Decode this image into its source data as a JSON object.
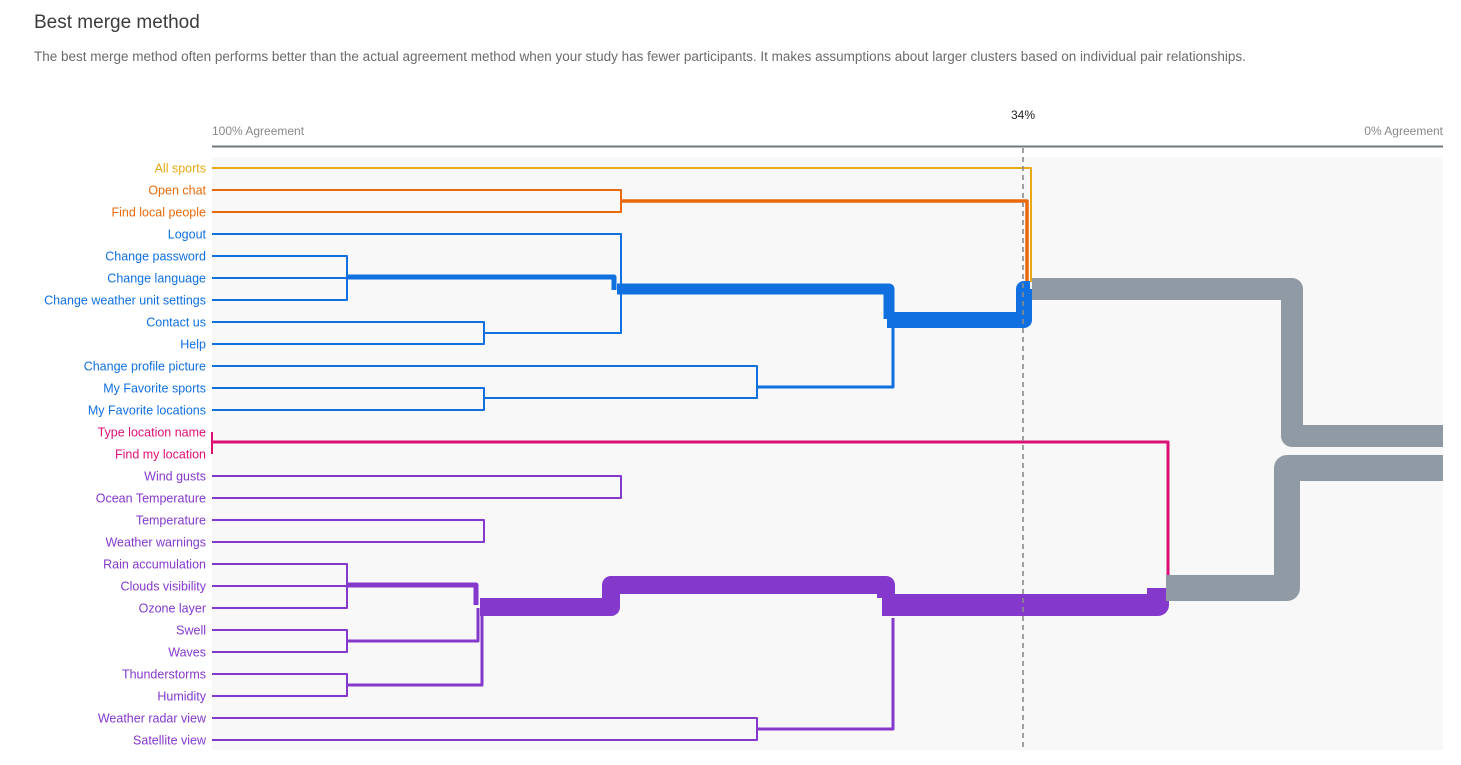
{
  "header": {
    "title": "Best merge method",
    "description": "The best merge method often performs better than the actual agreement method when your study has fewer participants. It makes assumptions about larger clusters based on individual pair relationships."
  },
  "axis": {
    "left_label": "100% Agreement",
    "right_label": "0% Agreement",
    "marker_label": "34%",
    "marker_value": 34
  },
  "colors": {
    "yellow": "#e8a915",
    "orange": "#ea6a0a",
    "blue": "#1170e0",
    "pink": "#dd0f75",
    "purple": "#8438cc",
    "gray": "#8f9aa5",
    "axis_line": "#6f7880",
    "plot_bg": "#f8f8f8"
  },
  "leaves": [
    {
      "label": "All sports",
      "group": "yellow"
    },
    {
      "label": "Open chat",
      "group": "orange"
    },
    {
      "label": "Find local people",
      "group": "orange"
    },
    {
      "label": "Logout",
      "group": "blue"
    },
    {
      "label": "Change password",
      "group": "blue"
    },
    {
      "label": "Change language",
      "group": "blue"
    },
    {
      "label": "Change weather unit settings",
      "group": "blue"
    },
    {
      "label": "Contact us",
      "group": "blue"
    },
    {
      "label": "Help",
      "group": "blue"
    },
    {
      "label": "Change profile picture",
      "group": "blue"
    },
    {
      "label": "My Favorite sports",
      "group": "blue"
    },
    {
      "label": "My Favorite locations",
      "group": "blue"
    },
    {
      "label": "Type location name",
      "group": "pink"
    },
    {
      "label": "Find my location",
      "group": "pink"
    },
    {
      "label": "Wind gusts",
      "group": "purple"
    },
    {
      "label": "Ocean Temperature",
      "group": "purple"
    },
    {
      "label": "Temperature",
      "group": "purple"
    },
    {
      "label": "Weather warnings",
      "group": "purple"
    },
    {
      "label": "Rain accumulation",
      "group": "purple"
    },
    {
      "label": "Clouds visibility",
      "group": "purple"
    },
    {
      "label": "Ozone layer",
      "group": "purple"
    },
    {
      "label": "Swell",
      "group": "purple"
    },
    {
      "label": "Waves",
      "group": "purple"
    },
    {
      "label": "Thunderstorms",
      "group": "purple"
    },
    {
      "label": "Humidity",
      "group": "purple"
    },
    {
      "label": "Weather radar view",
      "group": "purple"
    },
    {
      "label": "Satellite view",
      "group": "purple"
    }
  ]
}
